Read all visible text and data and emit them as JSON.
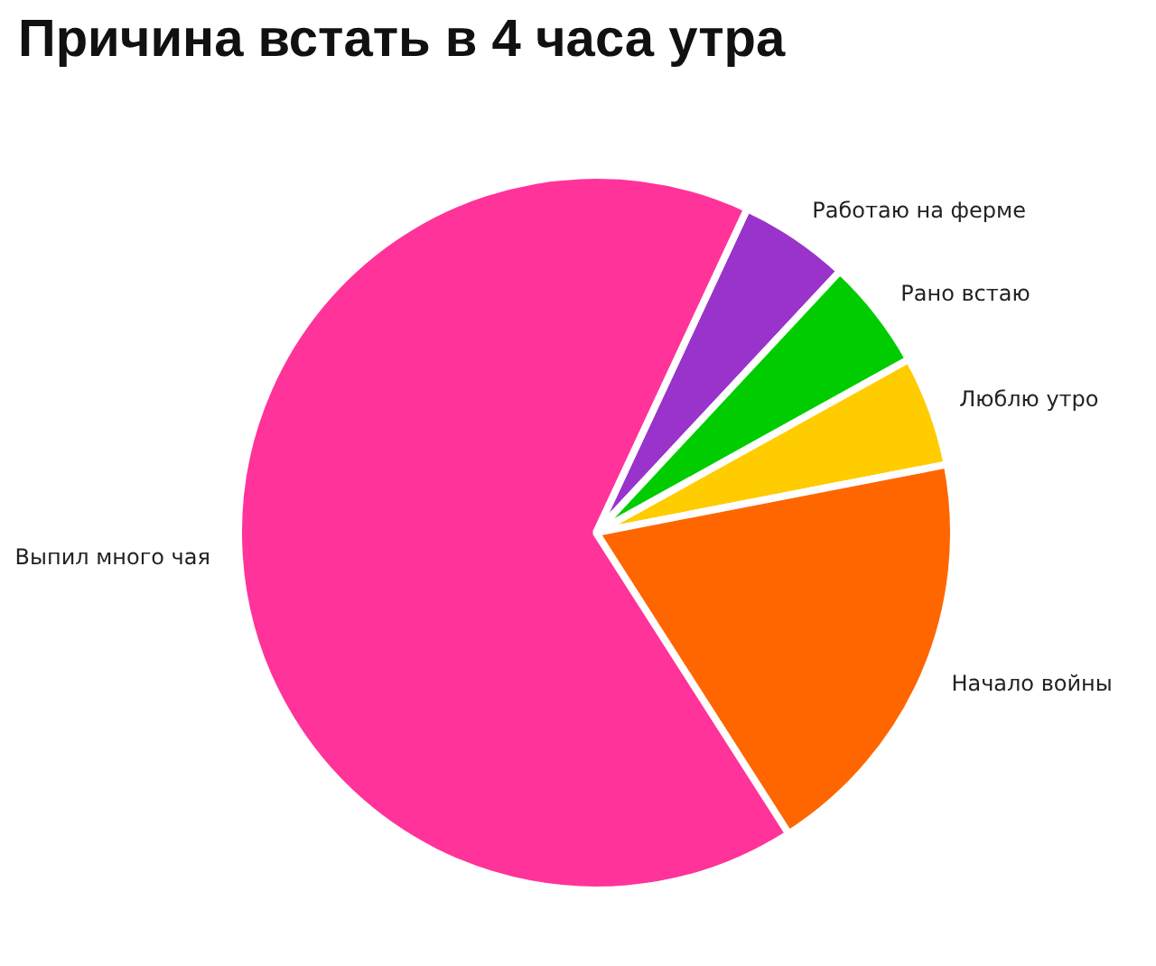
{
  "chart_data": {
    "type": "pie",
    "title": "Причина встать в 4 часа утра",
    "categories": [
      "Работаю на ферме",
      "Рано встаю",
      "Люблю утро",
      "Начало войны",
      "Выпил много чая"
    ],
    "values": [
      5,
      5,
      5,
      19,
      66
    ],
    "colors": [
      "#9933cc",
      "#00cc00",
      "#ffcc00",
      "#ff6600",
      "#ff3399"
    ],
    "legend": false
  }
}
